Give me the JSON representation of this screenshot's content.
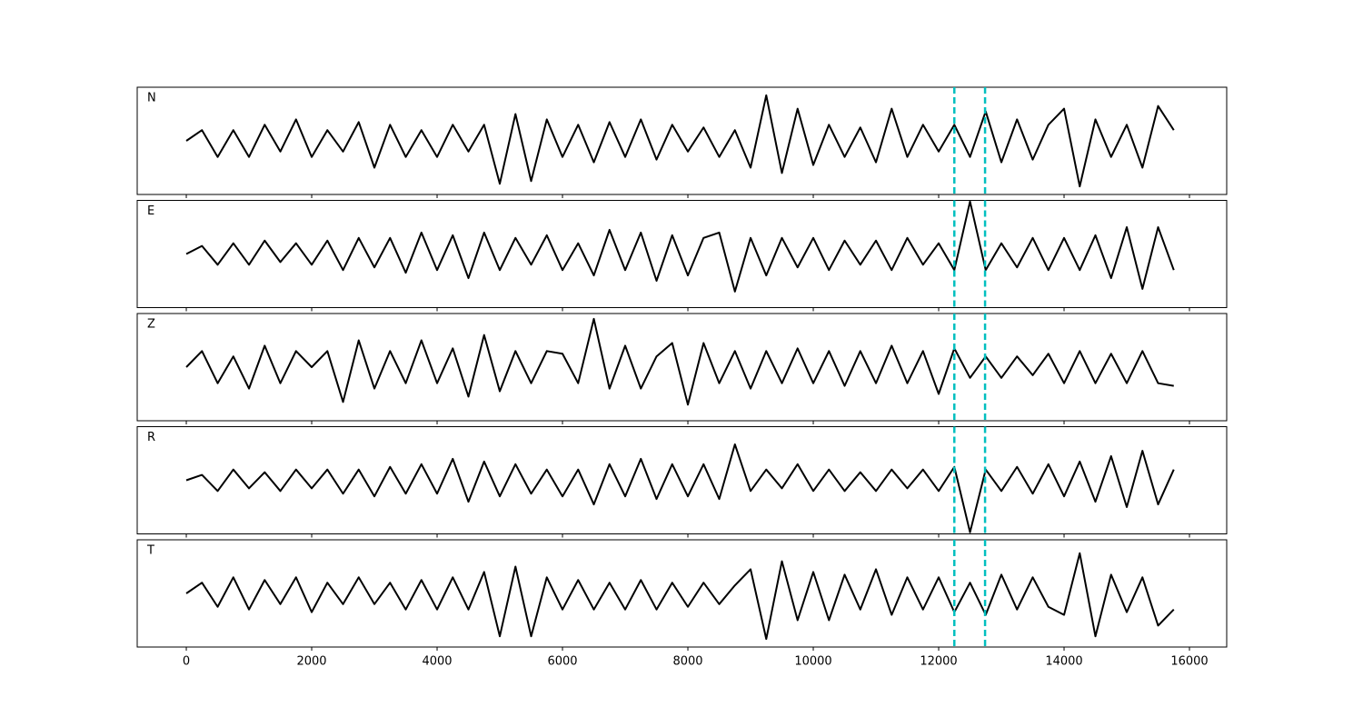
{
  "chart_data": [
    {
      "type": "line",
      "label": "N",
      "color": "#000000",
      "x": [
        0,
        250,
        500,
        750,
        1000,
        1250,
        1500,
        1750,
        2000,
        2250,
        2500,
        2750,
        3000,
        3250,
        3500,
        3750,
        4000,
        4250,
        4500,
        4750,
        5000,
        5250,
        5500,
        5750,
        6000,
        6250,
        6500,
        6750,
        7000,
        7250,
        7500,
        7750,
        8000,
        8250,
        8500,
        8750,
        9000,
        9250,
        9500,
        9750,
        10000,
        10250,
        10500,
        10750,
        11000,
        11250,
        11500,
        11750,
        12000,
        12250,
        12500,
        12750,
        13000,
        13250,
        13500,
        13750,
        14000,
        14250,
        14500,
        14750,
        15000,
        15250,
        15500,
        15750
      ],
      "values": [
        0,
        0.2,
        -0.3,
        0.2,
        -0.3,
        0.3,
        -0.2,
        0.4,
        -0.3,
        0.2,
        -0.2,
        0.35,
        -0.5,
        0.3,
        -0.3,
        0.2,
        -0.3,
        0.3,
        -0.2,
        0.3,
        -0.8,
        0.5,
        -0.75,
        0.4,
        -0.3,
        0.3,
        -0.4,
        0.35,
        -0.3,
        0.4,
        -0.35,
        0.3,
        -0.2,
        0.25,
        -0.3,
        0.2,
        -0.5,
        0.85,
        -0.6,
        0.6,
        -0.45,
        0.3,
        -0.3,
        0.25,
        -0.4,
        0.6,
        -0.3,
        0.3,
        -0.2,
        0.3,
        -0.3,
        0.55,
        -0.4,
        0.4,
        -0.35,
        0.3,
        0.6,
        -0.85,
        0.4,
        -0.3,
        0.3,
        -0.5,
        0.65,
        0.2
      ],
      "xlim": [
        -783,
        16594
      ],
      "ylim": [
        -1,
        1
      ],
      "vlines": [
        12250,
        12740
      ],
      "vline_color": "#00bfbf"
    },
    {
      "type": "line",
      "label": "E",
      "color": "#000000",
      "x": [
        0,
        250,
        500,
        750,
        1000,
        1250,
        1500,
        1750,
        2000,
        2250,
        2500,
        2750,
        3000,
        3250,
        3500,
        3750,
        4000,
        4250,
        4500,
        4750,
        5000,
        5250,
        5500,
        5750,
        6000,
        6250,
        6500,
        6750,
        7000,
        7250,
        7500,
        7750,
        8000,
        8250,
        8500,
        8750,
        9000,
        9250,
        9500,
        9750,
        10000,
        10250,
        10500,
        10750,
        11000,
        11250,
        11500,
        11750,
        12000,
        12250,
        12500,
        12750,
        13000,
        13250,
        13500,
        13750,
        14000,
        14250,
        14500,
        14750,
        15000,
        15250,
        15500,
        15750
      ],
      "values": [
        0,
        0.15,
        -0.2,
        0.2,
        -0.2,
        0.25,
        -0.15,
        0.2,
        -0.2,
        0.25,
        -0.3,
        0.3,
        -0.25,
        0.3,
        -0.35,
        0.4,
        -0.3,
        0.35,
        -0.45,
        0.4,
        -0.3,
        0.3,
        -0.2,
        0.35,
        -0.3,
        0.2,
        -0.4,
        0.45,
        -0.3,
        0.4,
        -0.5,
        0.35,
        -0.4,
        0.3,
        0.4,
        -0.7,
        0.3,
        -0.4,
        0.3,
        -0.25,
        0.3,
        -0.3,
        0.25,
        -0.2,
        0.25,
        -0.3,
        0.3,
        -0.2,
        0.2,
        -0.3,
        0.98,
        -0.3,
        0.2,
        -0.25,
        0.3,
        -0.3,
        0.3,
        -0.3,
        0.35,
        -0.45,
        0.5,
        -0.65,
        0.5,
        -0.3
      ],
      "xlim": [
        -783,
        16594
      ],
      "ylim": [
        -1,
        1
      ],
      "vlines": [
        12250,
        12740
      ],
      "vline_color": "#00bfbf"
    },
    {
      "type": "line",
      "label": "Z",
      "color": "#000000",
      "x": [
        0,
        250,
        500,
        750,
        1000,
        1250,
        1500,
        1750,
        2000,
        2250,
        2500,
        2750,
        3000,
        3250,
        3500,
        3750,
        4000,
        4250,
        4500,
        4750,
        5000,
        5250,
        5500,
        5750,
        6000,
        6250,
        6500,
        6750,
        7000,
        7250,
        7500,
        7750,
        8000,
        8250,
        8500,
        8750,
        9000,
        9250,
        9500,
        9750,
        10000,
        10250,
        10500,
        10750,
        11000,
        11250,
        11500,
        11750,
        12000,
        12250,
        12500,
        12750,
        13000,
        13250,
        13500,
        13750,
        14000,
        14250,
        14500,
        14750,
        15000,
        15250,
        15500,
        15750
      ],
      "values": [
        0,
        0.3,
        -0.3,
        0.2,
        -0.4,
        0.4,
        -0.3,
        0.3,
        0,
        0.3,
        -0.65,
        0.5,
        -0.4,
        0.3,
        -0.3,
        0.5,
        -0.3,
        0.35,
        -0.55,
        0.6,
        -0.45,
        0.3,
        -0.3,
        0.3,
        0.25,
        -0.3,
        0.9,
        -0.4,
        0.4,
        -0.4,
        0.2,
        0.45,
        -0.7,
        0.45,
        -0.3,
        0.3,
        -0.4,
        0.3,
        -0.3,
        0.35,
        -0.3,
        0.3,
        -0.35,
        0.3,
        -0.3,
        0.4,
        -0.3,
        0.3,
        -0.5,
        0.35,
        -0.2,
        0.2,
        -0.2,
        0.2,
        -0.15,
        0.25,
        -0.3,
        0.3,
        -0.3,
        0.25,
        -0.3,
        0.3,
        -0.3,
        -0.35
      ],
      "xlim": [
        -783,
        16594
      ],
      "ylim": [
        -1,
        1
      ],
      "vlines": [
        12250,
        12740
      ],
      "vline_color": "#00bfbf"
    },
    {
      "type": "line",
      "label": "R",
      "color": "#000000",
      "x": [
        0,
        250,
        500,
        750,
        1000,
        1250,
        1500,
        1750,
        2000,
        2250,
        2500,
        2750,
        3000,
        3250,
        3500,
        3750,
        4000,
        4250,
        4500,
        4750,
        5000,
        5250,
        5500,
        5750,
        6000,
        6250,
        6500,
        6750,
        7000,
        7250,
        7500,
        7750,
        8000,
        8250,
        8500,
        8750,
        9000,
        9250,
        9500,
        9750,
        10000,
        10250,
        10500,
        10750,
        11000,
        11250,
        11500,
        11750,
        12000,
        12250,
        12500,
        12750,
        13000,
        13250,
        13500,
        13750,
        14000,
        14250,
        14500,
        14750,
        15000,
        15250,
        15500,
        15750
      ],
      "values": [
        0,
        0.1,
        -0.2,
        0.2,
        -0.15,
        0.15,
        -0.2,
        0.2,
        -0.15,
        0.2,
        -0.25,
        0.2,
        -0.3,
        0.25,
        -0.25,
        0.3,
        -0.25,
        0.4,
        -0.4,
        0.35,
        -0.3,
        0.3,
        -0.25,
        0.2,
        -0.3,
        0.2,
        -0.45,
        0.3,
        -0.3,
        0.4,
        -0.35,
        0.3,
        -0.3,
        0.3,
        -0.35,
        0.67,
        -0.2,
        0.2,
        -0.15,
        0.3,
        -0.2,
        0.2,
        -0.2,
        0.15,
        -0.2,
        0.2,
        -0.15,
        0.2,
        -0.2,
        0.25,
        -0.97,
        0.2,
        -0.2,
        0.25,
        -0.25,
        0.3,
        -0.3,
        0.35,
        -0.4,
        0.45,
        -0.5,
        0.55,
        -0.45,
        0.2
      ],
      "xlim": [
        -783,
        16594
      ],
      "ylim": [
        -1,
        1
      ],
      "vlines": [
        12250,
        12740
      ],
      "vline_color": "#00bfbf"
    },
    {
      "type": "line",
      "label": "T",
      "color": "#000000",
      "x": [
        0,
        250,
        500,
        750,
        1000,
        1250,
        1500,
        1750,
        2000,
        2250,
        2500,
        2750,
        3000,
        3250,
        3500,
        3750,
        4000,
        4250,
        4500,
        4750,
        5000,
        5250,
        5500,
        5750,
        6000,
        6250,
        6500,
        6750,
        7000,
        7250,
        7500,
        7750,
        8000,
        8250,
        8500,
        8750,
        9000,
        9250,
        9500,
        9750,
        10000,
        10250,
        10500,
        10750,
        11000,
        11250,
        11500,
        11750,
        12000,
        12250,
        12500,
        12750,
        13000,
        13250,
        13500,
        13750,
        14000,
        14250,
        14500,
        14750,
        15000,
        15250,
        15500,
        15750
      ],
      "values": [
        0,
        0.2,
        -0.25,
        0.3,
        -0.3,
        0.25,
        -0.2,
        0.3,
        -0.35,
        0.2,
        -0.2,
        0.3,
        -0.2,
        0.2,
        -0.3,
        0.25,
        -0.3,
        0.3,
        -0.3,
        0.4,
        -0.8,
        0.5,
        -0.8,
        0.3,
        -0.3,
        0.25,
        -0.3,
        0.2,
        -0.3,
        0.25,
        -0.3,
        0.2,
        -0.25,
        0.2,
        -0.2,
        0.15,
        0.45,
        -0.85,
        0.6,
        -0.5,
        0.4,
        -0.5,
        0.35,
        -0.3,
        0.45,
        -0.4,
        0.3,
        -0.3,
        0.3,
        -0.35,
        0.2,
        -0.4,
        0.35,
        -0.3,
        0.3,
        -0.25,
        -0.4,
        0.75,
        -0.8,
        0.35,
        -0.35,
        0.3,
        -0.6,
        -0.3
      ],
      "xlim": [
        -783,
        16594
      ],
      "ylim": [
        -1,
        1
      ],
      "vlines": [
        12250,
        12740
      ],
      "vline_color": "#00bfbf",
      "xticks": [
        0,
        2000,
        4000,
        6000,
        8000,
        10000,
        12000,
        14000,
        16000
      ]
    }
  ]
}
